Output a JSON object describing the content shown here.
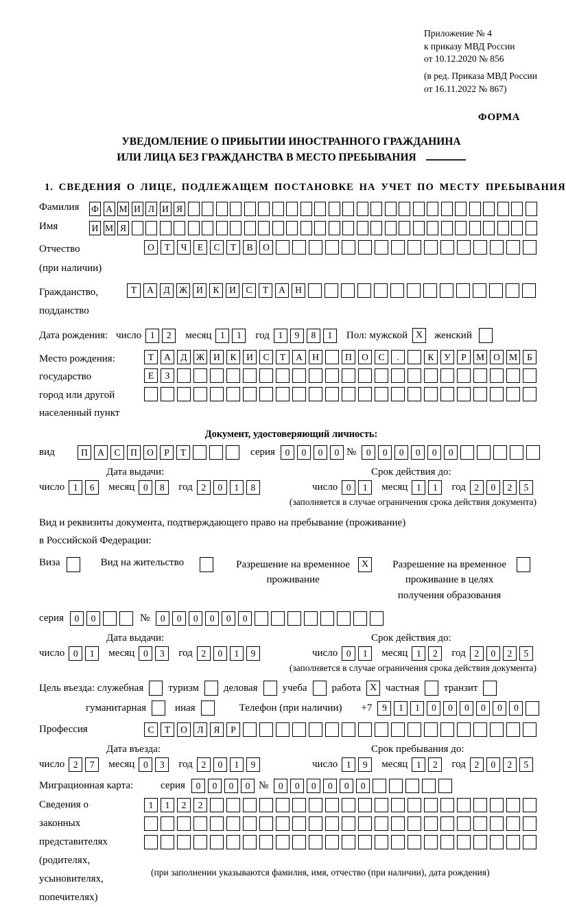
{
  "accent_color": "#000000",
  "lbl": {
    "day": "число",
    "month": "месяц",
    "year": "год",
    "series": "серия",
    "num": "№"
  },
  "header": {
    "ref1": "Приложение № 4",
    "ref2": "к приказу МВД России",
    "ref3": "от 10.12.2020 № 856",
    "ref4": "(в ред. Приказа МВД России",
    "ref5": "от 16.11.2022 № 867)",
    "forma": "ФОРМА",
    "title1": "УВЕДОМЛЕНИЕ О ПРИБЫТИИ ИНОСТРАННОГО ГРАЖДАНИНА",
    "title2": "ИЛИ ЛИЦА БЕЗ ГРАЖДАНСТВА В МЕСТО ПРЕБЫВАНИЯ",
    "section1": "1. СВЕДЕНИЯ О ЛИЦЕ, ПОДЛЕЖАЩЕМ ПОСТАНОВКЕ НА УЧЕТ ПО МЕСТУ ПРЕБЫВАНИЯ"
  },
  "person": {
    "surname": {
      "label": "Фамилия",
      "cells": {
        "value": "ФАМИЛИЯ",
        "total": 32
      }
    },
    "name": {
      "label": "Имя",
      "cells": {
        "value": "ИМЯ",
        "total": 32
      }
    },
    "patronymic": {
      "label1": "Отчество",
      "label2": "(при наличии)",
      "cells": {
        "value": "ОТЧЕСТВО",
        "total": 24
      }
    },
    "citizenship": {
      "label1": "Гражданство,",
      "label2": "подданство",
      "cells": {
        "value": "ТАДЖИКИСТАН",
        "total": 25
      }
    },
    "birthdate": {
      "label": "Дата рождения:",
      "day": "12",
      "month": "11",
      "year": "1981"
    },
    "sex": {
      "label": "Пол: мужской",
      "male": "X",
      "female_label": "женский",
      "female": ""
    },
    "birthplace": {
      "label1": "Место рождения:",
      "label2": "государство",
      "label3": "город или другой",
      "label4": "населенный пункт",
      "row1": {
        "value": "ТАДЖИКИСТАН ПОС. КУРМОМБ",
        "total": 24
      },
      "row2": {
        "value": "ЕЗ",
        "total": 24
      },
      "row3": {
        "value": "",
        "total": 24
      }
    }
  },
  "identity_doc": {
    "header": "Документ, удостоверяющий личность:",
    "type_label": "вид",
    "type": {
      "value": "ПАСПОРТ",
      "total": 10
    },
    "series": {
      "value": "0000",
      "total": 4
    },
    "number": {
      "value": "000000",
      "total": 11
    },
    "issue_header": "Дата выдачи:",
    "issue": {
      "day": "16",
      "month": "08",
      "year": "2018"
    },
    "expiry_header": "Срок действия до:",
    "expiry": {
      "day": "01",
      "month": "11",
      "year": "2025"
    },
    "note": "(заполняется в случае ограничения срока действия документа)"
  },
  "residence_doc": {
    "intro1": "Вид и реквизиты документа, подтверждающего право на пребывание (проживание)",
    "intro2": "в Российской Федерации:",
    "options": [
      {
        "label": "Виза",
        "checked": ""
      },
      {
        "label": "Вид на жительство",
        "checked": ""
      },
      {
        "label": "Разрешение на временное проживание",
        "checked": "X"
      },
      {
        "label": "Разрешение на временное проживание в целях получения образования",
        "checked": ""
      }
    ],
    "series": {
      "value": "00",
      "total": 4
    },
    "number": {
      "value": "000000",
      "total": 14
    },
    "issue_header": "Дата выдачи:",
    "issue": {
      "day": "01",
      "month": "03",
      "year": "2019"
    },
    "expiry_header": "Срок действия до:",
    "expiry": {
      "day": "01",
      "month": "12",
      "year": "2025"
    },
    "note": "(заполняется в случае ограничения срока действия документа)"
  },
  "visit": {
    "purpose_label": "Цель въезда: служебная",
    "purposes_row1": [
      {
        "label": "туризм",
        "checked": ""
      },
      {
        "label": "деловая",
        "checked": ""
      },
      {
        "label": "учеба",
        "checked": ""
      },
      {
        "label": "работа",
        "checked": "X"
      },
      {
        "label": "частная",
        "checked": ""
      },
      {
        "label": "транзит",
        "checked": ""
      }
    ],
    "purpose_first_checked": "",
    "purposes_row2": [
      {
        "label": "гуманитарная",
        "checked": ""
      },
      {
        "label": "иная",
        "checked": ""
      }
    ],
    "phone_label": "Телефон (при наличии)",
    "phone_prefix": "+7",
    "phone": {
      "value": "911000000",
      "total": 10
    },
    "profession_label": "Профессия",
    "profession": {
      "value": "СТОЛЯР",
      "total": 24
    },
    "entry_header": "Дата въезда:",
    "entry": {
      "day": "27",
      "month": "03",
      "year": "2019"
    },
    "stay_header": "Срок пребывания до:",
    "stay": {
      "day": "19",
      "month": "12",
      "year": "2025"
    },
    "migration_label": "Миграционная карта:",
    "migration_series": {
      "value": "0000",
      "total": 4
    },
    "migration_number": {
      "value": "000000",
      "total": 11
    }
  },
  "representatives": {
    "label1": "Сведения о",
    "label2": "законных",
    "label3": "представителях",
    "label4": "(родителях,",
    "label5": "усыновителях,",
    "label6": "попечителях)",
    "row1": {
      "value": "1122",
      "total": 24
    },
    "row2": {
      "value": "",
      "total": 24
    },
    "row3": {
      "value": "",
      "total": 24
    },
    "note": "(при заполнении указываются фамилия, имя, отчество (при наличии), дата рождения)"
  }
}
